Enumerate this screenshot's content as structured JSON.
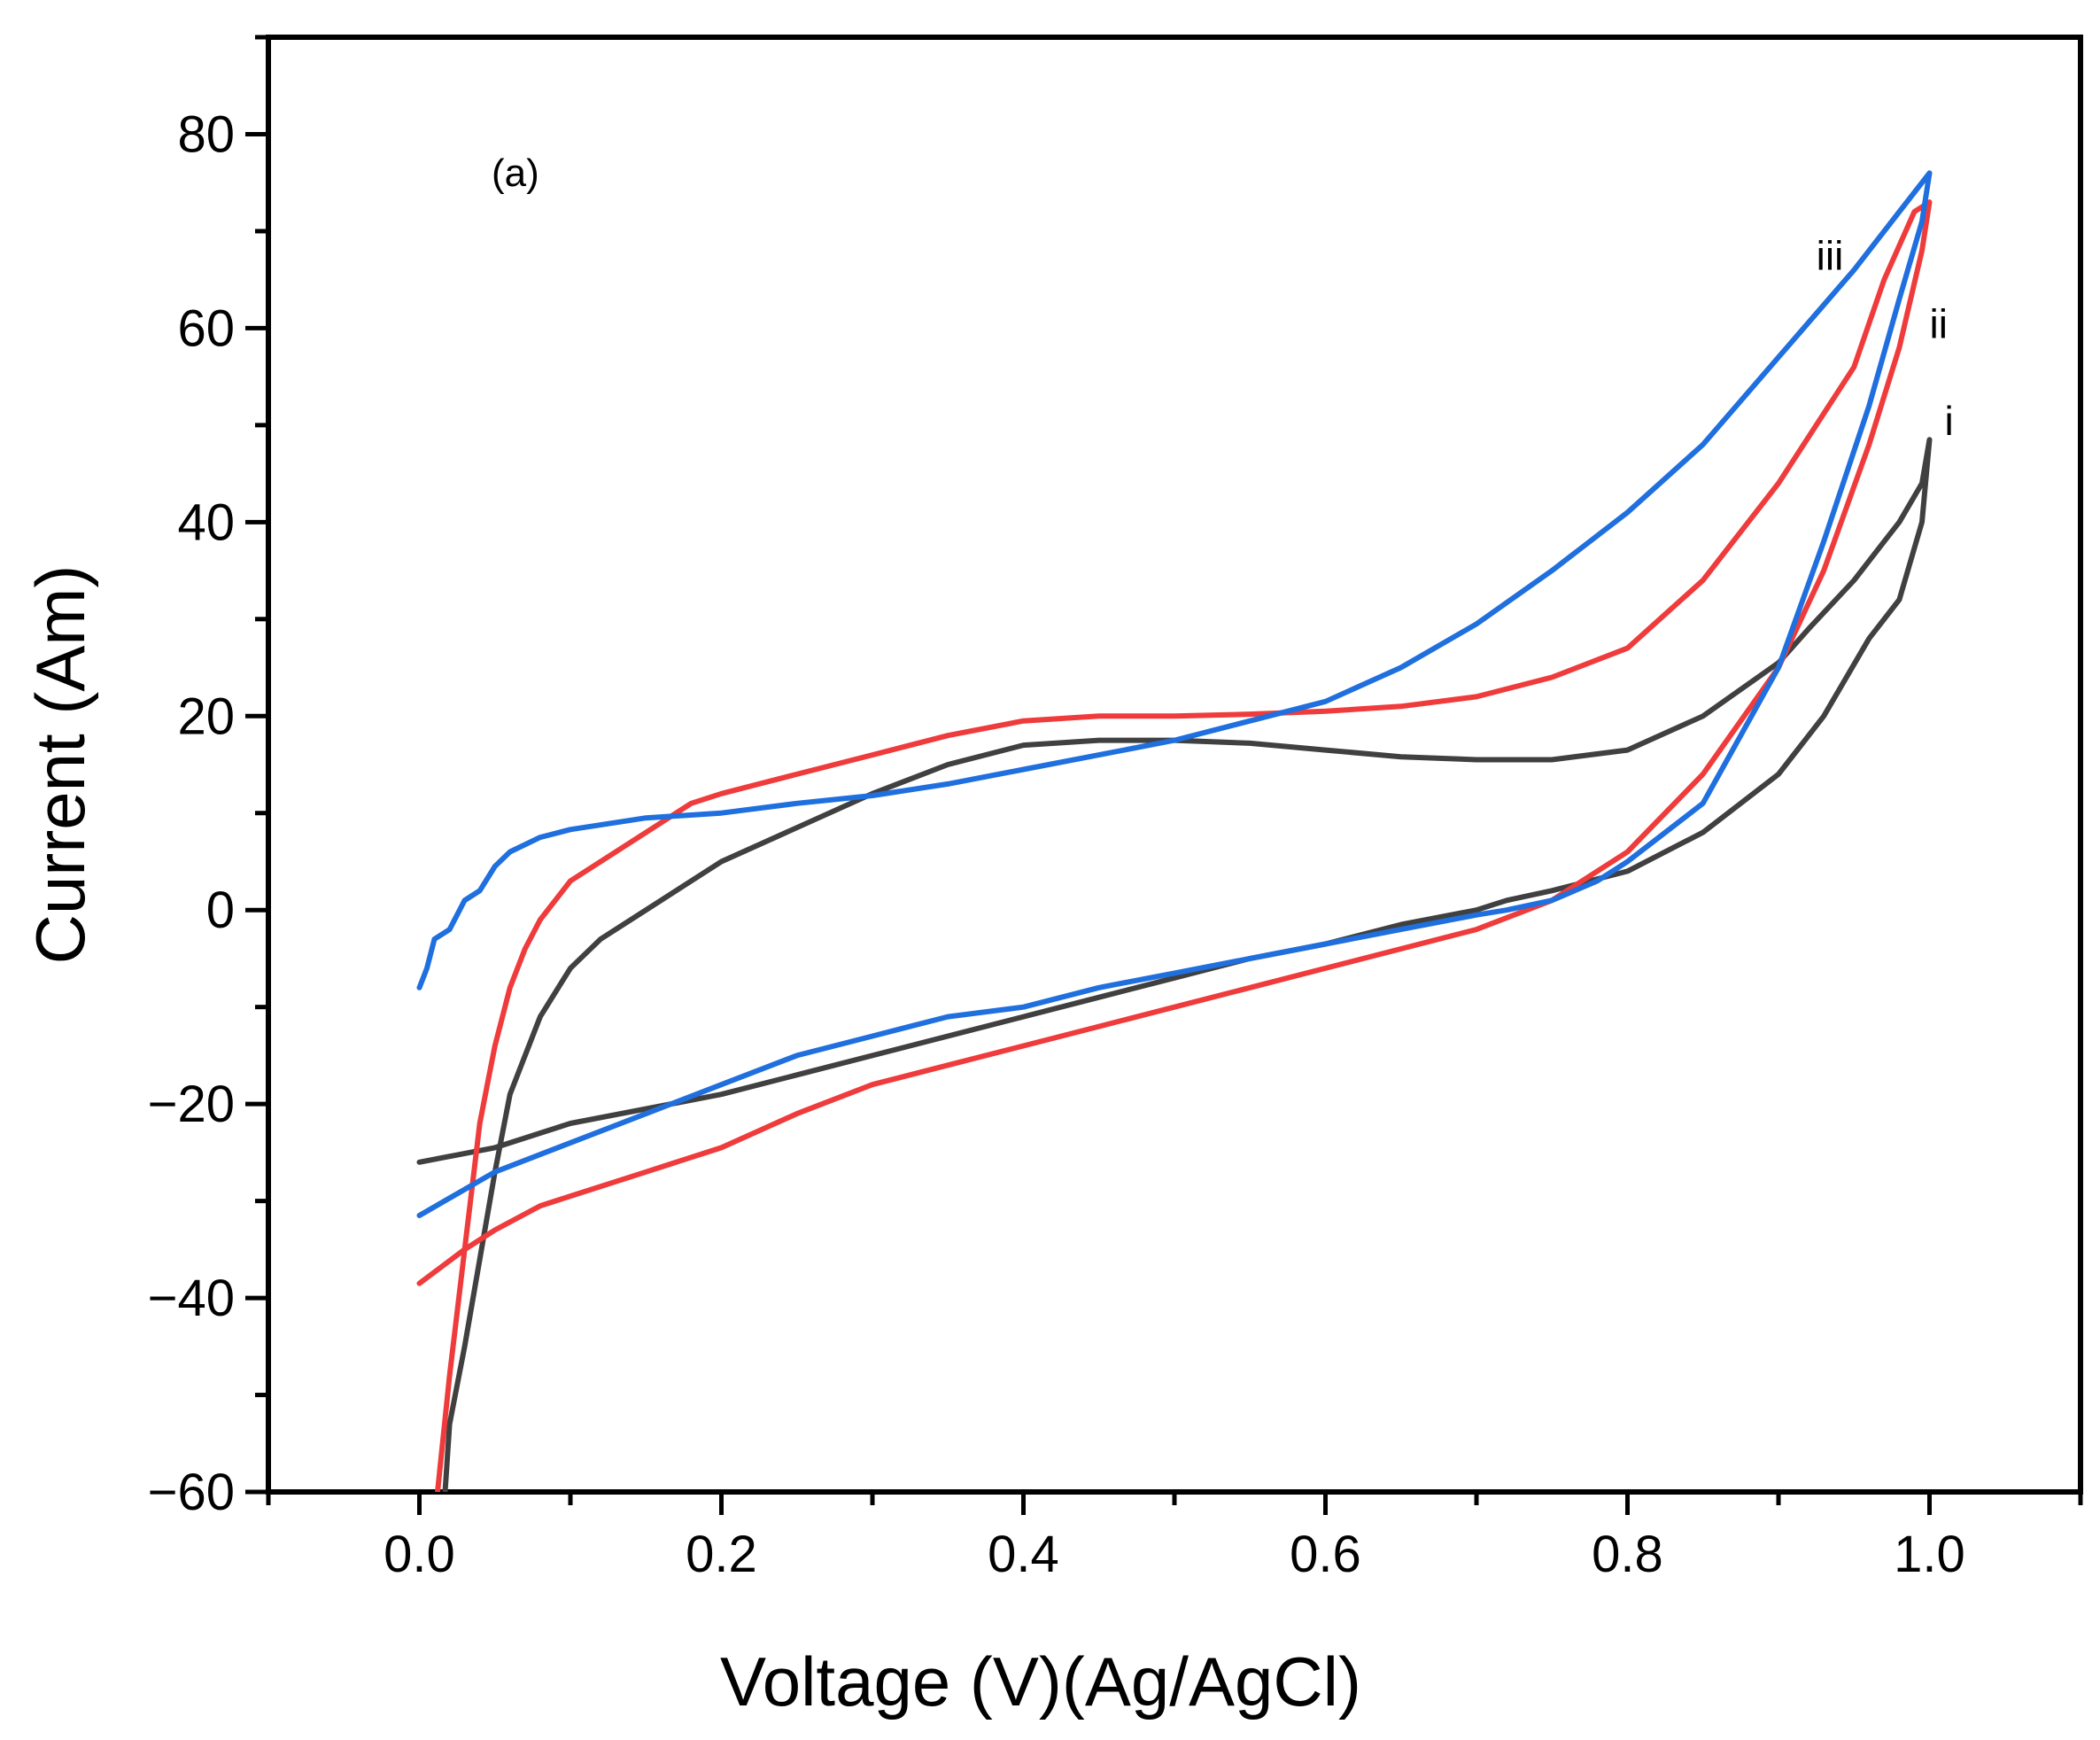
{
  "chart_data": {
    "type": "line",
    "title": "",
    "annotation": "(a)",
    "xlabel": "Voltage (V)(Ag/AgCl)",
    "ylabel": "Current (Am)",
    "xlim": [
      -0.1,
      1.1
    ],
    "ylim": [
      -60,
      90
    ],
    "xticks": [
      0.0,
      0.2,
      0.4,
      0.6,
      0.8,
      1.0
    ],
    "xtick_labels": [
      "0.0",
      "0.2",
      "0.4",
      "0.6",
      "0.8",
      "1.0"
    ],
    "yticks": [
      -60,
      -40,
      -20,
      0,
      20,
      40,
      60,
      80
    ],
    "ytick_labels": [
      "−60",
      "−40",
      "−20",
      "0",
      "20",
      "40",
      "60",
      "80"
    ],
    "grid": false,
    "series": [
      {
        "name": "i",
        "color": "#404040",
        "x": [
          0.0,
          0.05,
          0.1,
          0.15,
          0.2,
          0.25,
          0.3,
          0.35,
          0.4,
          0.45,
          0.5,
          0.55,
          0.6,
          0.65,
          0.7,
          0.72,
          0.75,
          0.8,
          0.85,
          0.9,
          0.93,
          0.96,
          0.98,
          0.995,
          1.0,
          0.995,
          0.98,
          0.97,
          0.95,
          0.92,
          0.9,
          0.85,
          0.8,
          0.75,
          0.7,
          0.65,
          0.6,
          0.55,
          0.5,
          0.45,
          0.4,
          0.35,
          0.3,
          0.25,
          0.2,
          0.18,
          0.15,
          0.12,
          0.1,
          0.08,
          0.06,
          0.05,
          0.04,
          0.03,
          0.02,
          0.017
        ],
        "y": [
          -26,
          -24.5,
          -22,
          -20.5,
          -19,
          -17,
          -15,
          -13,
          -11,
          -9,
          -7,
          -5,
          -3.5,
          -1.5,
          0,
          1,
          2,
          4,
          8,
          14,
          20,
          28,
          32,
          40,
          48.5,
          44,
          40,
          38,
          34,
          29,
          25.5,
          20,
          16.5,
          15.5,
          15.5,
          15.8,
          16.5,
          17.2,
          17.5,
          17.5,
          17,
          15,
          12,
          8.5,
          5,
          3,
          0,
          -3,
          -6,
          -11,
          -19,
          -27,
          -36,
          -45,
          -53,
          -60
        ]
      },
      {
        "name": "ii",
        "color": "#ef3b3b",
        "x": [
          0.0,
          0.03,
          0.05,
          0.08,
          0.1,
          0.15,
          0.2,
          0.25,
          0.3,
          0.35,
          0.4,
          0.45,
          0.5,
          0.55,
          0.6,
          0.65,
          0.7,
          0.75,
          0.8,
          0.85,
          0.9,
          0.93,
          0.96,
          0.98,
          0.995,
          1.0,
          0.99,
          0.97,
          0.95,
          0.9,
          0.85,
          0.8,
          0.75,
          0.7,
          0.65,
          0.6,
          0.55,
          0.5,
          0.45,
          0.4,
          0.35,
          0.3,
          0.25,
          0.2,
          0.18,
          0.15,
          0.12,
          0.1,
          0.09,
          0.08,
          0.07,
          0.06,
          0.05,
          0.045,
          0.04,
          0.03,
          0.02,
          0.012
        ],
        "y": [
          -38.5,
          -35,
          -33,
          -30.5,
          -29.5,
          -27,
          -24.5,
          -21,
          -18,
          -16,
          -14,
          -12,
          -10,
          -8,
          -6,
          -4,
          -2,
          1,
          6,
          14,
          25,
          35,
          48,
          58,
          68,
          73,
          72,
          65,
          56,
          44,
          34,
          27,
          24,
          22,
          21,
          20.5,
          20.2,
          20,
          20,
          19.5,
          18,
          16,
          14,
          12,
          11,
          8,
          5,
          3,
          1,
          -1,
          -4,
          -8,
          -14,
          -18,
          -22,
          -35,
          -48,
          -60
        ]
      },
      {
        "name": "iii",
        "color": "#1f6fdf",
        "x": [
          0.0,
          0.05,
          0.1,
          0.15,
          0.2,
          0.25,
          0.3,
          0.35,
          0.4,
          0.45,
          0.5,
          0.55,
          0.6,
          0.65,
          0.7,
          0.72,
          0.75,
          0.78,
          0.8,
          0.85,
          0.9,
          0.93,
          0.96,
          0.98,
          0.995,
          1.0,
          0.98,
          0.95,
          0.9,
          0.85,
          0.8,
          0.75,
          0.7,
          0.65,
          0.6,
          0.55,
          0.5,
          0.45,
          0.4,
          0.35,
          0.3,
          0.25,
          0.2,
          0.15,
          0.1,
          0.08,
          0.06,
          0.05,
          0.04,
          0.03,
          0.02,
          0.01,
          0.005,
          0.0
        ],
        "y": [
          -31.5,
          -27,
          -24,
          -21,
          -18,
          -15,
          -13,
          -11,
          -10,
          -8,
          -6.5,
          -5,
          -3.5,
          -2,
          -0.5,
          0,
          1,
          3,
          5,
          11,
          25,
          38,
          52,
          63,
          71,
          76,
          72,
          66,
          57,
          48,
          41,
          35,
          29.5,
          25,
          21.5,
          19.5,
          17.5,
          16,
          14.5,
          13,
          11.8,
          11,
          10,
          9.5,
          8.3,
          7.5,
          6,
          4.5,
          2,
          1,
          -2,
          -3,
          -6,
          -8
        ]
      }
    ]
  }
}
